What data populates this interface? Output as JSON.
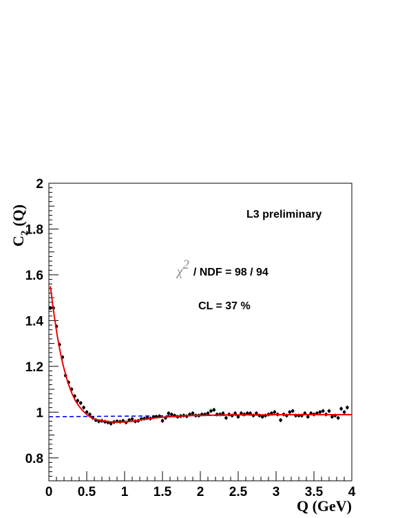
{
  "chart_data": {
    "type": "scatter",
    "title": "",
    "xlabel": "Q (GeV)",
    "xlabel_prefix": "Q",
    "xlabel_unit": "(GeV)",
    "ylabel_base": "C",
    "ylabel_sub": "2",
    "ylabel_arg": "(Q)",
    "xlim": [
      0,
      4
    ],
    "ylim": [
      0.7,
      2.0
    ],
    "x_ticks": [
      {
        "v": 0,
        "label": "0"
      },
      {
        "v": 0.5,
        "label": "0.5"
      },
      {
        "v": 1,
        "label": "1"
      },
      {
        "v": 1.5,
        "label": "1.5"
      },
      {
        "v": 2,
        "label": "2"
      },
      {
        "v": 2.5,
        "label": "2.5"
      },
      {
        "v": 3,
        "label": "3"
      },
      {
        "v": 3.5,
        "label": "3.5"
      },
      {
        "v": 4,
        "label": "4"
      }
    ],
    "y_ticks": [
      {
        "v": 0.8,
        "label": "0.8"
      },
      {
        "v": 1.0,
        "label": "1"
      },
      {
        "v": 1.2,
        "label": "1.2"
      },
      {
        "v": 1.4,
        "label": "1.4"
      },
      {
        "v": 1.6,
        "label": "1.6"
      },
      {
        "v": 1.8,
        "label": "1.8"
      },
      {
        "v": 2.0,
        "label": "2"
      }
    ],
    "grid": false,
    "annotations": {
      "experiment": "L3 preliminary",
      "chi_symbol": "χ",
      "chi_sup": "2",
      "chi_rest": "/ NDF = 98 / 94",
      "cl": "CL = 37 %"
    },
    "series": [
      {
        "role": "data",
        "color": "#000000",
        "x": [
          0.02,
          0.06,
          0.1,
          0.14,
          0.18,
          0.22,
          0.26,
          0.3,
          0.34,
          0.38,
          0.42,
          0.46,
          0.5,
          0.54,
          0.58,
          0.62,
          0.66,
          0.7,
          0.74,
          0.78,
          0.82,
          0.86,
          0.9,
          0.94,
          0.98,
          1.02,
          1.06,
          1.1,
          1.14,
          1.18,
          1.22,
          1.26,
          1.3,
          1.34,
          1.38,
          1.42,
          1.46,
          1.5,
          1.54,
          1.58,
          1.62,
          1.66,
          1.7,
          1.74,
          1.78,
          1.82,
          1.86,
          1.9,
          1.94,
          1.98,
          2.02,
          2.06,
          2.1,
          2.14,
          2.18,
          2.22,
          2.26,
          2.3,
          2.34,
          2.38,
          2.42,
          2.46,
          2.5,
          2.54,
          2.58,
          2.62,
          2.66,
          2.7,
          2.74,
          2.78,
          2.82,
          2.86,
          2.9,
          2.94,
          2.98,
          3.02,
          3.06,
          3.1,
          3.14,
          3.18,
          3.22,
          3.26,
          3.3,
          3.34,
          3.38,
          3.42,
          3.46,
          3.5,
          3.54,
          3.58,
          3.62,
          3.66,
          3.7,
          3.74,
          3.78,
          3.82,
          3.86,
          3.9,
          3.94
        ],
        "y": [
          1.455,
          1.455,
          1.375,
          1.295,
          1.24,
          1.16,
          1.13,
          1.1,
          1.07,
          1.05,
          1.04,
          1.02,
          1.0,
          0.99,
          0.975,
          0.965,
          0.96,
          0.962,
          0.958,
          0.955,
          0.95,
          0.957,
          0.96,
          0.958,
          0.962,
          0.955,
          0.965,
          0.97,
          0.96,
          0.962,
          0.97,
          0.972,
          0.975,
          0.972,
          0.978,
          0.98,
          0.982,
          0.962,
          0.975,
          0.995,
          0.99,
          0.985,
          0.98,
          0.983,
          0.985,
          0.982,
          0.99,
          0.995,
          0.985,
          0.985,
          0.99,
          0.99,
          0.995,
          1.005,
          1.01,
          0.99,
          0.99,
          0.995,
          0.975,
          0.99,
          0.985,
          0.995,
          0.98,
          0.995,
          0.99,
          0.995,
          0.995,
          0.985,
          0.995,
          0.985,
          0.98,
          0.985,
          0.99,
          0.995,
          1.0,
          0.99,
          0.965,
          0.99,
          0.985,
          1.0,
          1.005,
          0.985,
          0.985,
          0.985,
          0.995,
          0.98,
          0.995,
          0.99,
          0.995,
          1.0,
          1.005,
          0.99,
          1.005,
          0.98,
          0.985,
          0.975,
          1.015,
          1.0,
          1.02
        ]
      },
      {
        "role": "fit",
        "color": "#ee0000",
        "x": [
          0.02,
          0.05,
          0.08,
          0.11,
          0.14,
          0.17,
          0.2,
          0.25,
          0.3,
          0.35,
          0.4,
          0.45,
          0.5,
          0.55,
          0.6,
          0.7,
          0.8,
          0.9,
          1.0,
          1.1,
          1.2,
          1.3,
          1.4,
          1.5,
          1.6,
          1.7,
          1.8,
          1.9,
          2.0,
          2.2,
          2.4,
          2.6,
          2.8,
          3.0,
          3.2,
          3.4,
          3.6,
          3.8,
          4.0
        ],
        "y": [
          1.55,
          1.47,
          1.4,
          1.335,
          1.28,
          1.23,
          1.19,
          1.13,
          1.085,
          1.05,
          1.025,
          1.005,
          0.99,
          0.978,
          0.97,
          0.962,
          0.958,
          0.956,
          0.957,
          0.96,
          0.965,
          0.97,
          0.975,
          0.978,
          0.98,
          0.982,
          0.984,
          0.985,
          0.986,
          0.987,
          0.988,
          0.988,
          0.988,
          0.989,
          0.989,
          0.989,
          0.989,
          0.989,
          0.989
        ]
      },
      {
        "role": "baseline",
        "color": "#0000ee",
        "x": [
          0,
          4
        ],
        "y": [
          0.98,
          0.99
        ]
      }
    ]
  }
}
